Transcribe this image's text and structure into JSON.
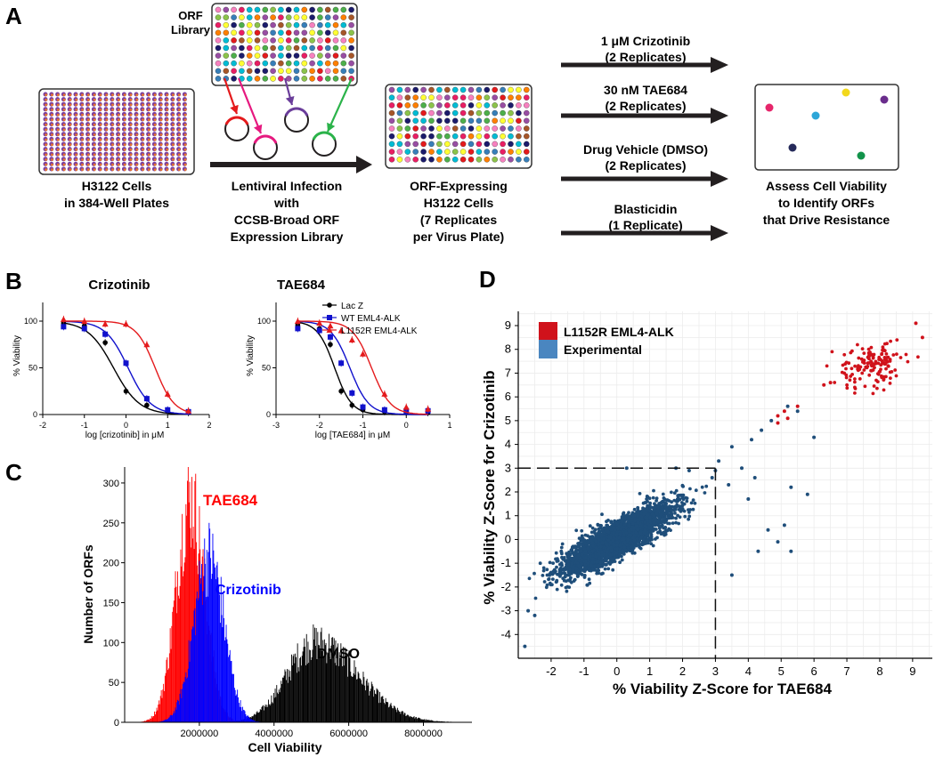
{
  "panel_labels": {
    "a": "A",
    "b": "B",
    "c": "C",
    "d": "D"
  },
  "panel_a": {
    "plate1": [
      "H3122 Cells",
      "in 384-Well Plates"
    ],
    "orf_library": [
      "ORF",
      "Library"
    ],
    "infection": [
      "Lentiviral Infection",
      "with",
      "CCSB-Broad ORF",
      "Expression Library"
    ],
    "plate2": [
      "ORF-Expressing",
      "H3122 Cells",
      "(7 Replicates",
      "per Virus Plate)"
    ],
    "conditions": [
      {
        "line1": "1 μM Crizotinib",
        "line2": "(2 Replicates)"
      },
      {
        "line1": "30 nM TAE684",
        "line2": "(2 Replicates)"
      },
      {
        "line1": "Drug Vehicle (DMSO)",
        "line2": "(2 Replicates)"
      },
      {
        "line1": "Blasticidin",
        "line2": "(1 Replicate)"
      }
    ],
    "assess": [
      "Assess Cell Viability",
      "to Identify ORFs",
      "that Drive Resistance"
    ],
    "well_colors": [
      "#e41a1c",
      "#377eb8",
      "#4daf4a",
      "#984ea3",
      "#ff7f00",
      "#ffff33",
      "#a65628",
      "#f781bf",
      "#00bcd4",
      "#1b1b6b",
      "#8bc34a",
      "#e91e63"
    ],
    "dot_colors": [
      "#e6266b",
      "#2da6d8",
      "#f2d81c",
      "#6a2d8c",
      "#252a5a",
      "#12934a"
    ],
    "arrow_colors": [
      "#e41a1c",
      "#e6197f",
      "#6a3d9a",
      "#2bb34a"
    ]
  },
  "chart_data": [
    {
      "id": "B-left",
      "type": "line",
      "title": "Crizotinib",
      "xlabel": "log [crizotinib] in μM",
      "ylabel": "% Viability",
      "xlim": [
        -2,
        2
      ],
      "ylim": [
        0,
        120
      ],
      "xticks": [
        "-2",
        "-1",
        "0",
        "1",
        "2"
      ],
      "yticks": [
        "0",
        "50",
        "100"
      ],
      "series": [
        {
          "name": "Lac Z",
          "color": "#000000",
          "marker": "circle",
          "ic50": -0.3,
          "hill": 1.4,
          "x": [
            -1.5,
            -1,
            -0.5,
            0,
            0.5,
            1,
            1.5
          ],
          "y": [
            98,
            95,
            77,
            25,
            10,
            4,
            2
          ]
        },
        {
          "name": "WT EML4-ALK",
          "color": "#1111cc",
          "marker": "square",
          "ic50": 0.05,
          "hill": 1.6,
          "x": [
            -1.5,
            -1,
            -0.5,
            0,
            0.5,
            1,
            1.5
          ],
          "y": [
            94,
            92,
            86,
            55,
            17,
            5,
            3
          ]
        },
        {
          "name": "L1152R EML4-ALK",
          "color": "#e41a1c",
          "marker": "triangle",
          "ic50": 0.7,
          "hill": 1.9,
          "x": [
            -1.5,
            -1,
            -0.5,
            0,
            0.5,
            1,
            1.5
          ],
          "y": [
            102,
            100,
            97,
            97,
            75,
            22,
            4
          ]
        }
      ]
    },
    {
      "id": "B-right",
      "type": "line",
      "title": "TAE684",
      "xlabel": "log [TAE684] in μM",
      "ylabel": "% Viability",
      "xlim": [
        -3,
        1
      ],
      "ylim": [
        0,
        120
      ],
      "xticks": [
        "-3",
        "-2",
        "-1",
        "0",
        "1"
      ],
      "yticks": [
        "0",
        "50",
        "100"
      ],
      "legend": [
        "Lac Z",
        "WT EML4-ALK",
        "L1152R EML4-ALK"
      ],
      "series": [
        {
          "name": "Lac Z",
          "color": "#000000",
          "marker": "circle",
          "ic50": -1.65,
          "hill": 2.2,
          "x": [
            -2.5,
            -2,
            -1.75,
            -1.5,
            -1.25,
            -1,
            -0.5,
            0,
            0.5
          ],
          "y": [
            96,
            92,
            75,
            25,
            10,
            5,
            3,
            2,
            2
          ]
        },
        {
          "name": "WT EML4-ALK",
          "color": "#1111cc",
          "marker": "square",
          "ic50": -1.3,
          "hill": 2.0,
          "x": [
            -2.5,
            -2,
            -1.75,
            -1.5,
            -1.25,
            -1,
            -0.5,
            0,
            0.5
          ],
          "y": [
            92,
            90,
            83,
            55,
            23,
            8,
            5,
            4,
            4
          ]
        },
        {
          "name": "L1152R EML4-ALK",
          "color": "#e41a1c",
          "marker": "triangle",
          "ic50": -0.8,
          "hill": 2.0,
          "x": [
            -2.5,
            -2,
            -1.75,
            -1.5,
            -1.25,
            -1,
            -0.5,
            0,
            0.5
          ],
          "y": [
            100,
            98,
            95,
            90,
            80,
            65,
            22,
            8,
            6
          ]
        }
      ]
    },
    {
      "id": "C",
      "type": "area",
      "xlabel": "Cell Viability",
      "ylabel": "Number of ORFs",
      "xlim": [
        0,
        9300000
      ],
      "ylim": [
        0,
        320
      ],
      "xticks": [
        "2000000",
        "4000000",
        "6000000",
        "8000000"
      ],
      "yticks": [
        "0",
        "50",
        "100",
        "150",
        "200",
        "250",
        "300"
      ],
      "series": [
        {
          "name": "TAE684",
          "color": "#ff0000",
          "mean": 1750000,
          "sd": 380000,
          "peak": 300
        },
        {
          "name": "Crizotinib",
          "color": "#0000ff",
          "mean": 2250000,
          "sd": 400000,
          "peak": 225
        },
        {
          "name": "DMSO",
          "color": "#000000",
          "mean": 5100000,
          "sd": 750000,
          "peak": 108
        }
      ]
    },
    {
      "id": "D",
      "type": "scatter",
      "xlabel": "% Viability Z-Score for TAE684",
      "ylabel": "% Viability Z-Score for Crizotinib",
      "xlim": [
        -3,
        9.6
      ],
      "ylim": [
        -5,
        9.6
      ],
      "xticks": [
        "-2",
        "-1",
        "0",
        "1",
        "2",
        "3",
        "4",
        "5",
        "6",
        "7",
        "8",
        "9"
      ],
      "yticks": [
        "-4",
        "-3",
        "-2",
        "-1",
        "0",
        "1",
        "2",
        "3",
        "4",
        "5",
        "6",
        "7",
        "8",
        "9"
      ],
      "threshold": {
        "x": 3,
        "y": 3
      },
      "legend": [
        {
          "label": "L1152R EML4-ALK",
          "color": "#d0121b"
        },
        {
          "label": "Experimental",
          "color": "#4a86c0"
        }
      ],
      "series": [
        {
          "name": "Experimental",
          "color": "#1f4e7a",
          "n": 3200,
          "center": [
            0,
            0
          ],
          "sd": [
            0.8,
            0.7
          ],
          "corr": 0.85,
          "outliers": [
            [
              3.1,
              3.3
            ],
            [
              3.5,
              3.9
            ],
            [
              4.1,
              4.2
            ],
            [
              4.4,
              4.6
            ],
            [
              4.7,
              5.0
            ],
            [
              5.2,
              5.6
            ],
            [
              5.5,
              5.4
            ],
            [
              6.0,
              4.3
            ],
            [
              3.8,
              3.0
            ],
            [
              4.2,
              2.6
            ],
            [
              5.3,
              2.2
            ],
            [
              5.8,
              1.9
            ],
            [
              4.0,
              1.7
            ],
            [
              3.0,
              2.9
            ],
            [
              3.4,
              2.3
            ],
            [
              2.2,
              2.9
            ],
            [
              1.8,
              3.0
            ],
            [
              0.3,
              3.0
            ],
            [
              4.6,
              0.4
            ],
            [
              5.1,
              0.6
            ],
            [
              4.9,
              -0.1
            ],
            [
              5.3,
              -0.5
            ],
            [
              4.3,
              -0.5
            ],
            [
              3.5,
              -1.5
            ],
            [
              -2.8,
              -4.5
            ],
            [
              -2.7,
              -3.0
            ],
            [
              -2.5,
              -3.2
            ],
            [
              2.9,
              2.6
            ]
          ]
        },
        {
          "name": "L1152R EML4-ALK",
          "color": "#d0121b",
          "n": 140,
          "center": [
            7.8,
            7.3
          ],
          "sd": [
            0.55,
            0.5
          ],
          "corr": 0.3,
          "outliers": [
            [
              4.9,
              5.2
            ],
            [
              5.1,
              5.4
            ],
            [
              5.2,
              5.1
            ],
            [
              4.9,
              4.9
            ],
            [
              5.5,
              5.6
            ],
            [
              9.1,
              9.1
            ],
            [
              9.3,
              8.5
            ],
            [
              6.5,
              6.6
            ],
            [
              6.3,
              6.5
            ]
          ]
        }
      ]
    }
  ]
}
